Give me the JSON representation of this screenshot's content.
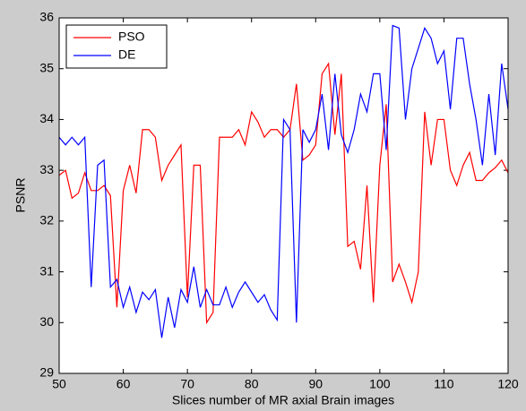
{
  "chart_data": {
    "type": "line",
    "xlabel": "Slices number of MR axial Brain images",
    "ylabel": "PSNR",
    "x": [
      50,
      51,
      52,
      53,
      54,
      55,
      56,
      57,
      58,
      59,
      60,
      61,
      62,
      63,
      64,
      65,
      66,
      67,
      68,
      69,
      70,
      71,
      72,
      73,
      74,
      75,
      76,
      77,
      78,
      79,
      80,
      81,
      82,
      83,
      84,
      85,
      86,
      87,
      88,
      89,
      90,
      91,
      92,
      93,
      94,
      95,
      96,
      97,
      98,
      99,
      100,
      101,
      102,
      103,
      104,
      105,
      106,
      107,
      108,
      109,
      110,
      111,
      112,
      113,
      114,
      115,
      116,
      117,
      118,
      119,
      120
    ],
    "series": [
      {
        "name": "PSO",
        "color": "#ff0000",
        "values": [
          32.9,
          33.0,
          32.45,
          32.55,
          32.95,
          32.6,
          32.6,
          32.7,
          32.5,
          30.3,
          32.6,
          33.1,
          32.55,
          33.8,
          33.8,
          33.65,
          32.8,
          33.1,
          33.3,
          33.5,
          30.5,
          33.1,
          33.1,
          30.0,
          30.2,
          33.65,
          33.65,
          33.65,
          33.8,
          33.5,
          34.15,
          33.95,
          33.65,
          33.8,
          33.8,
          33.65,
          33.8,
          34.7,
          33.2,
          33.3,
          33.5,
          34.9,
          35.1,
          33.7,
          34.9,
          31.5,
          31.6,
          31.05,
          32.7,
          30.4,
          33.1,
          34.3,
          30.8,
          31.15,
          30.8,
          30.4,
          31.0,
          34.15,
          33.1,
          34.0,
          34.0,
          33.0,
          32.7,
          33.1,
          33.35,
          32.8,
          32.8,
          32.95,
          33.05,
          33.2,
          32.95
        ]
      },
      {
        "name": "DE",
        "color": "#0000ff",
        "values": [
          33.65,
          33.5,
          33.65,
          33.5,
          33.65,
          30.7,
          33.1,
          33.2,
          30.7,
          30.85,
          30.3,
          30.7,
          30.2,
          30.6,
          30.45,
          30.65,
          29.7,
          30.5,
          29.9,
          30.65,
          30.4,
          31.1,
          30.3,
          30.65,
          30.35,
          30.35,
          30.7,
          30.3,
          30.6,
          30.8,
          30.6,
          30.4,
          30.55,
          30.25,
          30.05,
          34.0,
          33.8,
          30.0,
          33.8,
          33.55,
          33.8,
          34.5,
          33.4,
          34.9,
          33.7,
          33.35,
          33.8,
          34.5,
          34.15,
          34.9,
          34.9,
          33.4,
          35.85,
          35.8,
          34.0,
          35.0,
          35.4,
          35.8,
          35.6,
          35.1,
          35.35,
          34.2,
          35.6,
          35.6,
          34.7,
          34.0,
          33.1,
          34.5,
          33.3,
          35.1,
          34.2
        ]
      }
    ],
    "xlim": [
      50,
      120
    ],
    "xticks": [
      50,
      60,
      70,
      80,
      90,
      100,
      110,
      120
    ],
    "ylim": [
      29,
      36
    ],
    "yticks": [
      29,
      30,
      31,
      32,
      33,
      34,
      35,
      36
    ],
    "legend": "upper-left"
  }
}
